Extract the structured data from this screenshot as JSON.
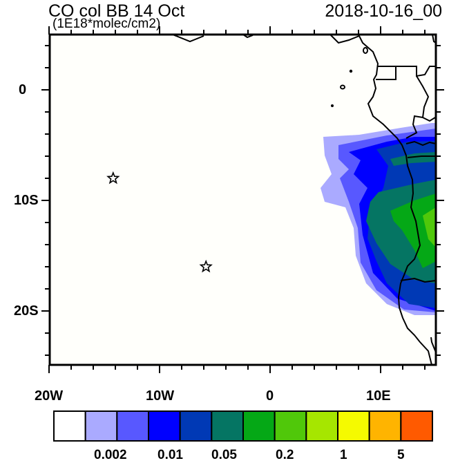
{
  "header": {
    "title": "CO col BB 14 Oct",
    "units": "(1E18*molec/cm2)",
    "valid_time": "2018-10-16_00"
  },
  "map": {
    "lon_range": [
      -20,
      15
    ],
    "lat_range": [
      -25,
      5
    ],
    "lon_labels": [
      "20W",
      "10W",
      "0",
      "10E"
    ],
    "lat_labels": [
      "0",
      "10S",
      "20S"
    ],
    "markers": [
      {
        "type": "star",
        "lon": -14.2,
        "lat": -8.0
      },
      {
        "type": "star",
        "lon": -5.8,
        "lat": -16.0
      }
    ],
    "ocean_color": "#fffffb"
  },
  "colorbar": {
    "colors": [
      "#ffffff",
      "#aaaaff",
      "#5858ff",
      "#0000ff",
      "#0039b5",
      "#057563",
      "#05a816",
      "#50c80a",
      "#a6e600",
      "#f5fa00",
      "#ffb400",
      "#ff5a00",
      "#ff0f00"
    ],
    "labels": [
      "0.002",
      "0.01",
      "0.05",
      "0.2",
      "1",
      "5"
    ]
  }
}
